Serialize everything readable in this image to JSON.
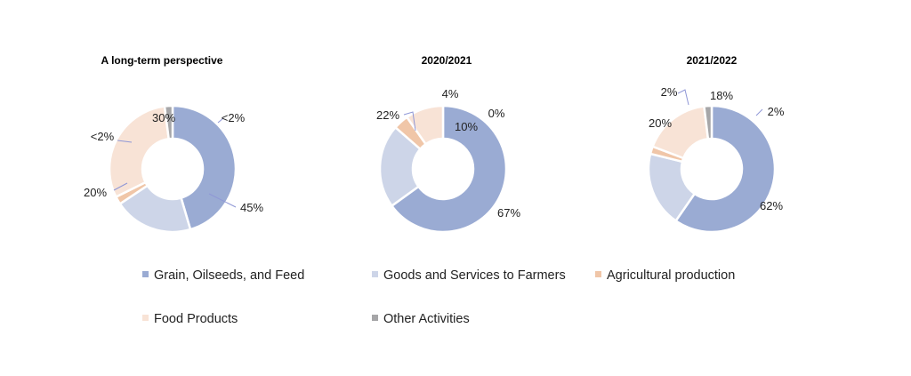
{
  "colors": {
    "Grain, Oilseeds, and Feed": "#9aabd3",
    "Goods and Services to Farmers": "#cdd5e8",
    "Agricultural production": "#f0c6a8",
    "Food Products": "#f8e3d6",
    "Other Activities": "#a6a6a8",
    "leader": "#8f97d6"
  },
  "chart_data": [
    {
      "type": "pie",
      "title": "A long-term perspective",
      "categories": [
        "Grain, Oilseeds, and Feed",
        "Goods and Services to Farmers",
        "Agricultural production",
        "Food Products",
        "Other Activities"
      ],
      "values": [
        45,
        20,
        2,
        30,
        2
      ],
      "labels": [
        "45%",
        "20%",
        "<2%",
        "30%",
        "<2%"
      ]
    },
    {
      "type": "pie",
      "title": "2020/2021",
      "categories": [
        "Grain, Oilseeds, and Feed",
        "Goods and Services to Farmers",
        "Agricultural production",
        "Food Products",
        "Other Activities"
      ],
      "values": [
        67,
        22,
        4,
        10,
        0
      ],
      "labels": [
        "67%",
        "22%",
        "4%",
        "10%",
        "0%"
      ]
    },
    {
      "type": "pie",
      "title": "2021/2022",
      "categories": [
        "Grain, Oilseeds, and Feed",
        "Goods and Services to Farmers",
        "Agricultural production",
        "Food Products",
        "Other Activities"
      ],
      "values": [
        62,
        20,
        2,
        18,
        2
      ],
      "labels": [
        "62%",
        "20%",
        "2%",
        "18%",
        "2%"
      ]
    }
  ],
  "legend": [
    "Grain, Oilseeds, and Feed",
    "Goods and Services to Farmers",
    "Agricultural production",
    "Food Products",
    "Other Activities"
  ]
}
